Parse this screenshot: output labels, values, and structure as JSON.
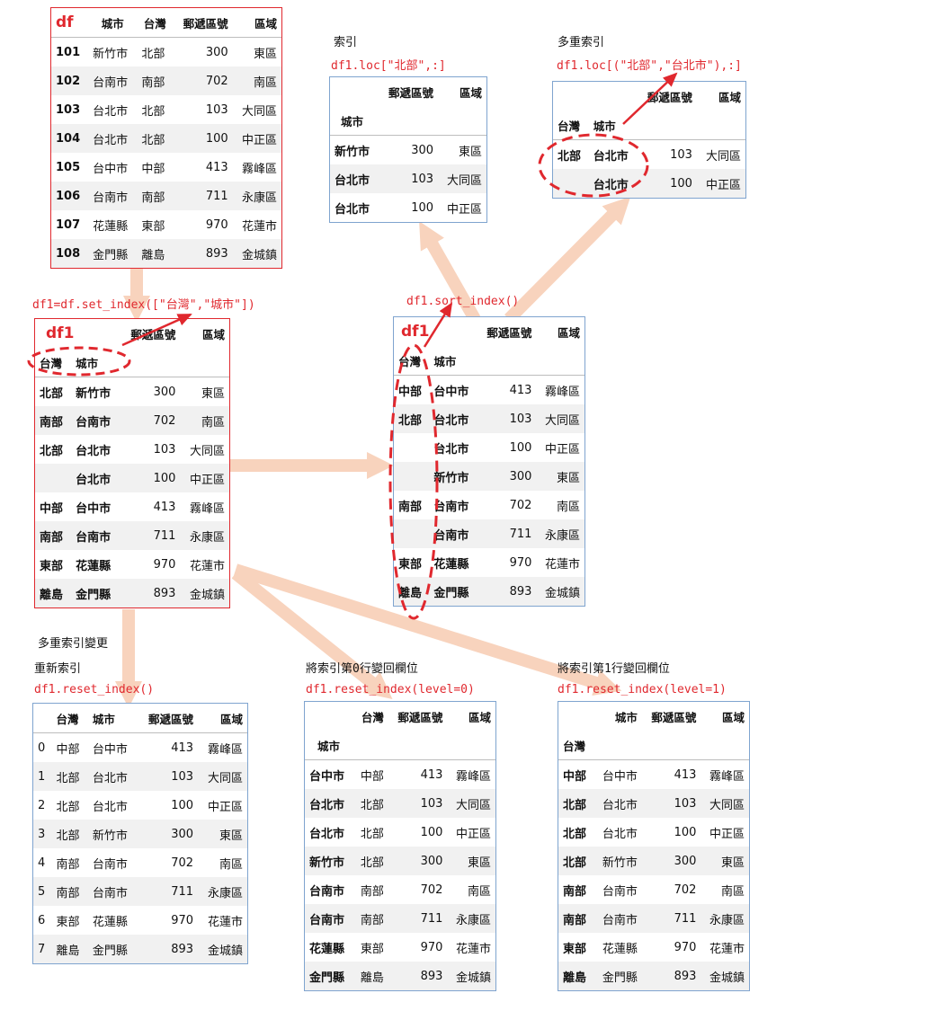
{
  "df": {
    "name": "df",
    "columns": [
      "城市",
      "台灣",
      "郵遞區號",
      "區域"
    ],
    "rows": [
      [
        "101",
        "新竹市",
        "北部",
        "300",
        "東區"
      ],
      [
        "102",
        "台南市",
        "南部",
        "702",
        "南區"
      ],
      [
        "103",
        "台北市",
        "北部",
        "103",
        "大同區"
      ],
      [
        "104",
        "台北市",
        "北部",
        "100",
        "中正區"
      ],
      [
        "105",
        "台中市",
        "中部",
        "413",
        "霧峰區"
      ],
      [
        "106",
        "台南市",
        "南部",
        "711",
        "永康區"
      ],
      [
        "107",
        "花蓮縣",
        "東部",
        "970",
        "花蓮市"
      ],
      [
        "108",
        "金門縣",
        "離島",
        "893",
        "金城鎮"
      ]
    ]
  },
  "labels": {
    "set_index_code": "df1=df.set_index([\"台灣\",\"城市\"])",
    "sort_index_code": "df1.sort_index()",
    "loc_title": "索引",
    "loc_code": "df1.loc[\"北部\",:]",
    "multi_title": "多重索引",
    "multi_code": "df1.loc[(\"北部\",\"台北市\"),:]",
    "reset_section": "多重索引變更",
    "reset_title": "重新索引",
    "reset_code": "df1.reset_index()",
    "reset0_title": "將索引第0行變回欄位",
    "reset0_code": "df1.reset_index(level=0)",
    "reset1_title": "將索引第1行變回欄位",
    "reset1_code": "df1.reset_index(level=1)"
  },
  "df1": {
    "name": "df1",
    "columns": [
      "郵遞區號",
      "區域"
    ],
    "index_names": [
      "台灣",
      "城市"
    ],
    "rows": [
      [
        "北部",
        "新竹市",
        "300",
        "東區"
      ],
      [
        "南部",
        "台南市",
        "702",
        "南區"
      ],
      [
        "北部",
        "台北市",
        "103",
        "大同區"
      ],
      [
        "",
        "台北市",
        "100",
        "中正區"
      ],
      [
        "中部",
        "台中市",
        "413",
        "霧峰區"
      ],
      [
        "南部",
        "台南市",
        "711",
        "永康區"
      ],
      [
        "東部",
        "花蓮縣",
        "970",
        "花蓮市"
      ],
      [
        "離島",
        "金門縣",
        "893",
        "金城鎮"
      ]
    ]
  },
  "sorted": {
    "name": "df1",
    "columns": [
      "郵遞區號",
      "區域"
    ],
    "index_names": [
      "台灣",
      "城市"
    ],
    "rows": [
      [
        "中部",
        "台中市",
        "413",
        "霧峰區"
      ],
      [
        "北部",
        "台北市",
        "103",
        "大同區"
      ],
      [
        "",
        "台北市",
        "100",
        "中正區"
      ],
      [
        "",
        "新竹市",
        "300",
        "東區"
      ],
      [
        "南部",
        "台南市",
        "702",
        "南區"
      ],
      [
        "",
        "台南市",
        "711",
        "永康區"
      ],
      [
        "東部",
        "花蓮縣",
        "970",
        "花蓮市"
      ],
      [
        "離島",
        "金門縣",
        "893",
        "金城鎮"
      ]
    ]
  },
  "loc": {
    "columns": [
      "郵遞區號",
      "區域"
    ],
    "index_name": "城市",
    "rows": [
      [
        "新竹市",
        "300",
        "東區"
      ],
      [
        "台北市",
        "103",
        "大同區"
      ],
      [
        "台北市",
        "100",
        "中正區"
      ]
    ]
  },
  "multi": {
    "columns": [
      "郵遞區號",
      "區域"
    ],
    "index_names": [
      "台灣",
      "城市"
    ],
    "rows": [
      [
        "北部",
        "台北市",
        "103",
        "大同區"
      ],
      [
        "",
        "台北市",
        "100",
        "中正區"
      ]
    ]
  },
  "reset": {
    "columns": [
      "台灣",
      "城市",
      "郵遞區號",
      "區域"
    ],
    "rows": [
      [
        "0",
        "中部",
        "台中市",
        "413",
        "霧峰區"
      ],
      [
        "1",
        "北部",
        "台北市",
        "103",
        "大同區"
      ],
      [
        "2",
        "北部",
        "台北市",
        "100",
        "中正區"
      ],
      [
        "3",
        "北部",
        "新竹市",
        "300",
        "東區"
      ],
      [
        "4",
        "南部",
        "台南市",
        "702",
        "南區"
      ],
      [
        "5",
        "南部",
        "台南市",
        "711",
        "永康區"
      ],
      [
        "6",
        "東部",
        "花蓮縣",
        "970",
        "花蓮市"
      ],
      [
        "7",
        "離島",
        "金門縣",
        "893",
        "金城鎮"
      ]
    ]
  },
  "reset0": {
    "columns": [
      "台灣",
      "郵遞區號",
      "區域"
    ],
    "index_name": "城市",
    "rows": [
      [
        "台中市",
        "中部",
        "413",
        "霧峰區"
      ],
      [
        "台北市",
        "北部",
        "103",
        "大同區"
      ],
      [
        "台北市",
        "北部",
        "100",
        "中正區"
      ],
      [
        "新竹市",
        "北部",
        "300",
        "東區"
      ],
      [
        "台南市",
        "南部",
        "702",
        "南區"
      ],
      [
        "台南市",
        "南部",
        "711",
        "永康區"
      ],
      [
        "花蓮縣",
        "東部",
        "970",
        "花蓮市"
      ],
      [
        "金門縣",
        "離島",
        "893",
        "金城鎮"
      ]
    ]
  },
  "reset1": {
    "columns": [
      "城市",
      "郵遞區號",
      "區域"
    ],
    "index_name": "台灣",
    "rows": [
      [
        "中部",
        "台中市",
        "413",
        "霧峰區"
      ],
      [
        "北部",
        "台北市",
        "103",
        "大同區"
      ],
      [
        "北部",
        "台北市",
        "100",
        "中正區"
      ],
      [
        "北部",
        "新竹市",
        "300",
        "東區"
      ],
      [
        "南部",
        "台南市",
        "702",
        "南區"
      ],
      [
        "南部",
        "台南市",
        "711",
        "永康區"
      ],
      [
        "東部",
        "花蓮縣",
        "970",
        "花蓮市"
      ],
      [
        "離島",
        "金門縣",
        "893",
        "金城鎮"
      ]
    ]
  },
  "colors": {
    "flow_arrow": "#f8d3bd",
    "highlight": "#e0282e",
    "red_border": "#e0282e",
    "blue_border": "#7fa4cf"
  }
}
